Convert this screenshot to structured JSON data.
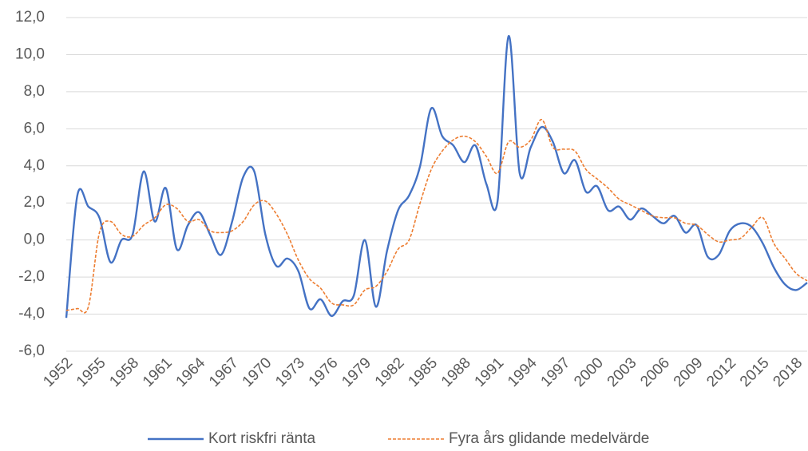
{
  "chart_data": {
    "type": "line",
    "categories": [
      "1952",
      null,
      null,
      "1955",
      null,
      null,
      "1958",
      null,
      null,
      "1961",
      null,
      null,
      "1964",
      null,
      null,
      "1967",
      null,
      null,
      "1970",
      null,
      null,
      "1973",
      null,
      null,
      "1976",
      null,
      null,
      "1979",
      null,
      null,
      "1982",
      null,
      null,
      "1985",
      null,
      null,
      "1988",
      null,
      null,
      "1991",
      null,
      null,
      "1994",
      null,
      null,
      "1997",
      null,
      null,
      "2000",
      null,
      null,
      "2003",
      null,
      null,
      "2006",
      null,
      null,
      "2009",
      null,
      null,
      "2012",
      null,
      null,
      "2015",
      null,
      null,
      "2018",
      null
    ],
    "series": [
      {
        "name": "Kort riskfri ränta",
        "color": "#4472c4",
        "dash": false,
        "values": [
          -4.2,
          2.4,
          1.8,
          1.2,
          -1.2,
          0.0,
          0.3,
          3.7,
          1.0,
          2.8,
          -0.5,
          0.8,
          1.5,
          0.3,
          -0.8,
          1.0,
          3.4,
          3.7,
          0.3,
          -1.4,
          -1.0,
          -1.7,
          -3.7,
          -3.2,
          -4.1,
          -3.3,
          -3.0,
          0.0,
          -3.6,
          -0.6,
          1.6,
          2.4,
          4.0,
          7.1,
          5.6,
          5.1,
          4.2,
          5.1,
          3.0,
          2.1,
          11.0,
          3.6,
          5.0,
          6.1,
          5.3,
          3.6,
          4.3,
          2.6,
          2.9,
          1.6,
          1.8,
          1.1,
          1.7,
          1.3,
          0.9,
          1.3,
          0.4,
          0.8,
          -0.9,
          -0.8,
          0.5,
          0.9,
          0.7,
          -0.2,
          -1.5,
          -2.4,
          -2.7,
          -2.3
        ]
      },
      {
        "name": "Fyra års glidande medelvärde",
        "color": "#ed7d31",
        "dash": true,
        "values": [
          -3.8,
          -3.7,
          -3.6,
          0.4,
          1.0,
          0.3,
          0.2,
          0.8,
          1.2,
          1.9,
          1.7,
          1.0,
          1.1,
          0.5,
          0.4,
          0.5,
          1.0,
          1.9,
          2.1,
          1.4,
          0.3,
          -1.1,
          -2.1,
          -2.6,
          -3.4,
          -3.5,
          -3.5,
          -2.7,
          -2.5,
          -1.7,
          -0.5,
          0.0,
          2.0,
          3.8,
          4.8,
          5.4,
          5.6,
          5.3,
          4.5,
          3.6,
          5.3,
          5.0,
          5.4,
          6.5,
          5.0,
          4.9,
          4.8,
          3.8,
          3.3,
          2.8,
          2.2,
          1.9,
          1.6,
          1.3,
          1.2,
          1.2,
          0.9,
          0.8,
          0.3,
          -0.1,
          0.0,
          0.1,
          0.7,
          1.2,
          -0.2,
          -1.0,
          -1.8,
          -2.2
        ]
      }
    ],
    "ylim": [
      -6,
      12
    ],
    "yticks": [
      {
        "value": -6,
        "label": "-6,0"
      },
      {
        "value": -4,
        "label": "-4,0"
      },
      {
        "value": -2,
        "label": "-2,0"
      },
      {
        "value": 0,
        "label": "0,0"
      },
      {
        "value": 2,
        "label": "2,0"
      },
      {
        "value": 4,
        "label": "4,0"
      },
      {
        "value": 6,
        "label": "6,0"
      },
      {
        "value": 8,
        "label": "8,0"
      },
      {
        "value": 10,
        "label": "10,0"
      },
      {
        "value": 12,
        "label": "12,0"
      }
    ],
    "grid": true,
    "legend": "bottom"
  }
}
